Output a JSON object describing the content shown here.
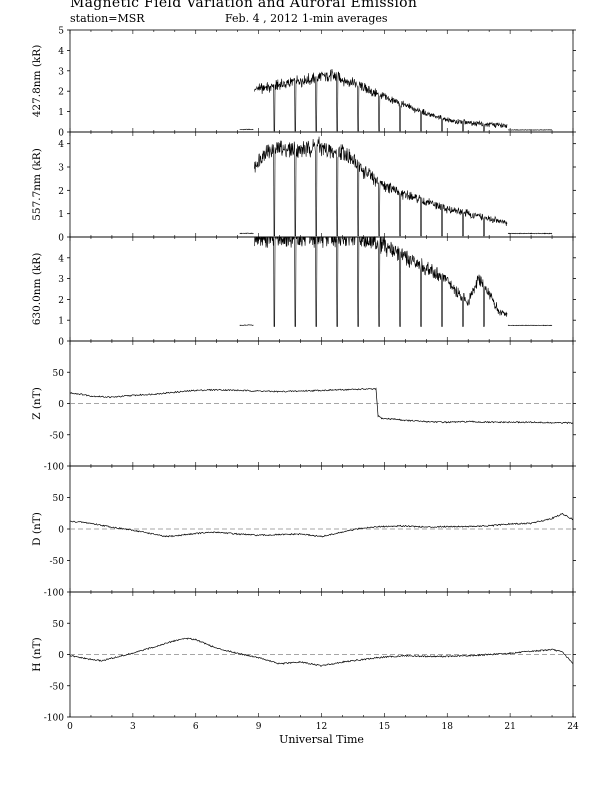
{
  "header": {
    "title": "Magnetic Field Variation and Auroral Emission",
    "station": "station=MSR",
    "date": "Feb. 4  , 2012",
    "averaging": "1-min averages"
  },
  "chart_data": [
    {
      "type": "line",
      "ylabel": "427.8nm (kR)",
      "ylim": [
        0,
        5
      ],
      "yticks": [
        0,
        1,
        2,
        3,
        4,
        5
      ],
      "xlim": [
        0,
        24
      ],
      "segments": [
        {
          "x": [
            8.1,
            8.6,
            8.75
          ],
          "y": [
            0.12,
            0.13,
            0.12
          ]
        },
        {
          "x": [
            8.8,
            9.5,
            10.5,
            11.5,
            12.3,
            13.0,
            14.0,
            15.0,
            16.0,
            17.0,
            18.0,
            19.0,
            20.0,
            20.85
          ],
          "y": [
            2.1,
            2.2,
            2.4,
            2.6,
            2.8,
            2.6,
            2.2,
            1.7,
            1.3,
            0.9,
            0.6,
            0.45,
            0.35,
            0.3
          ]
        },
        {
          "x": [
            20.9,
            22.0,
            23.0
          ],
          "y": [
            0.1,
            0.1,
            0.1
          ]
        }
      ],
      "dropouts": [
        9.75,
        10.75,
        11.75,
        12.75,
        13.75,
        14.75,
        15.75,
        16.75,
        17.75,
        18.75,
        19.75
      ]
    },
    {
      "type": "line",
      "ylabel": "557.7nm (kR)",
      "ylim": [
        0,
        4.5
      ],
      "yticks": [
        0,
        1,
        2,
        3,
        4
      ],
      "xlim": [
        0,
        24
      ],
      "segments": [
        {
          "x": [
            8.1,
            8.6,
            8.75
          ],
          "y": [
            0.15,
            0.16,
            0.15
          ]
        },
        {
          "x": [
            8.8,
            9.2,
            10.0,
            11.0,
            11.8,
            12.5,
            13.0,
            13.5,
            14.0,
            15.0,
            16.0,
            17.0,
            18.0,
            19.0,
            20.0,
            20.85
          ],
          "y": [
            3.0,
            3.6,
            3.8,
            3.7,
            3.9,
            3.6,
            3.7,
            3.3,
            2.8,
            2.2,
            1.8,
            1.5,
            1.2,
            1.0,
            0.8,
            0.6
          ]
        },
        {
          "x": [
            20.9,
            22.0,
            23.0
          ],
          "y": [
            0.15,
            0.15,
            0.15
          ]
        }
      ],
      "dropouts": [
        9.75,
        10.75,
        11.75,
        12.75,
        13.75,
        14.75,
        15.75,
        16.75,
        17.75,
        18.75,
        19.75
      ]
    },
    {
      "type": "line",
      "ylabel": "630.0nm (kR)",
      "ylim": [
        0,
        5
      ],
      "yticks": [
        0,
        1,
        2,
        3,
        4
      ],
      "xlim": [
        0,
        24
      ],
      "segments": [
        {
          "x": [
            8.1,
            8.6,
            8.75
          ],
          "y": [
            0.75,
            0.78,
            0.75
          ]
        },
        {
          "x": [
            8.8,
            9.5,
            10.5,
            11.5,
            12.5,
            13.5,
            14.3,
            15.0,
            15.5,
            16.0,
            16.5,
            17.0,
            17.5,
            18.0,
            18.5,
            19.0,
            19.5,
            20.0,
            20.5,
            20.85
          ],
          "y": [
            5.0,
            5.0,
            5.0,
            5.0,
            5.0,
            5.0,
            4.9,
            4.6,
            4.3,
            4.0,
            3.7,
            3.5,
            3.2,
            2.9,
            2.3,
            1.9,
            3.0,
            2.2,
            1.4,
            1.3
          ]
        },
        {
          "x": [
            20.9,
            22.0,
            23.0
          ],
          "y": [
            0.75,
            0.75,
            0.75
          ]
        }
      ],
      "dropouts": [
        9.75,
        10.75,
        11.75,
        12.75,
        13.75,
        14.75,
        15.75,
        16.75,
        17.75,
        18.75,
        19.75
      ]
    },
    {
      "type": "line",
      "ylabel": "Z (nT)",
      "ylim": [
        -100,
        100
      ],
      "yticks": [
        -100,
        -50,
        0,
        50
      ],
      "xlim": [
        0,
        24
      ],
      "x": [
        0,
        0.5,
        1,
        1.5,
        2,
        3,
        4,
        5,
        6,
        7,
        8,
        9,
        10,
        11,
        12,
        13,
        14,
        14.6,
        14.7,
        14.9,
        15.5,
        16,
        17,
        18,
        19,
        20,
        21,
        22,
        23,
        24
      ],
      "y": [
        17,
        15,
        12,
        11,
        10,
        13,
        15,
        18,
        21,
        22,
        21,
        20,
        19,
        20,
        21,
        22,
        23,
        23,
        -20,
        -24,
        -25,
        -27,
        -29,
        -30,
        -29,
        -30,
        -30,
        -30,
        -31,
        -31
      ]
    },
    {
      "type": "line",
      "ylabel": "D (nT)",
      "ylim": [
        -100,
        100
      ],
      "yticks": [
        -100,
        -50,
        0,
        50
      ],
      "xlim": [
        0,
        24
      ],
      "x": [
        0,
        0.5,
        1,
        1.5,
        2,
        3,
        4,
        4.5,
        5,
        6,
        7,
        8,
        9,
        10,
        11,
        12,
        13,
        14,
        15,
        16,
        17,
        18,
        19,
        20,
        21,
        22,
        23,
        23.5,
        24
      ],
      "y": [
        12,
        11,
        9,
        6,
        3,
        -2,
        -8,
        -12,
        -11,
        -7,
        -5,
        -8,
        -10,
        -9,
        -8,
        -12,
        -5,
        2,
        4,
        5,
        3,
        4,
        4,
        5,
        8,
        9,
        17,
        24,
        15
      ]
    },
    {
      "type": "line",
      "ylabel": "H (nT)",
      "ylim": [
        -100,
        100
      ],
      "yticks": [
        -100,
        -50,
        0,
        50
      ],
      "xlim": [
        0,
        24
      ],
      "xticks": [
        0,
        3,
        6,
        9,
        12,
        15,
        18,
        21,
        24
      ],
      "xlabel": "Universal Time",
      "x": [
        0,
        1,
        1.5,
        2,
        3,
        4,
        5,
        5.5,
        6,
        7,
        8,
        9,
        10,
        11,
        12,
        13,
        14,
        15,
        16,
        17,
        18,
        19,
        20,
        21,
        22,
        23,
        23.5,
        24
      ],
      "y": [
        -2,
        -8,
        -10,
        -6,
        2,
        12,
        22,
        26,
        24,
        10,
        2,
        -5,
        -15,
        -12,
        -18,
        -12,
        -8,
        -4,
        -2,
        -3,
        -3,
        -2,
        0,
        2,
        5,
        8,
        4,
        -15
      ]
    }
  ]
}
